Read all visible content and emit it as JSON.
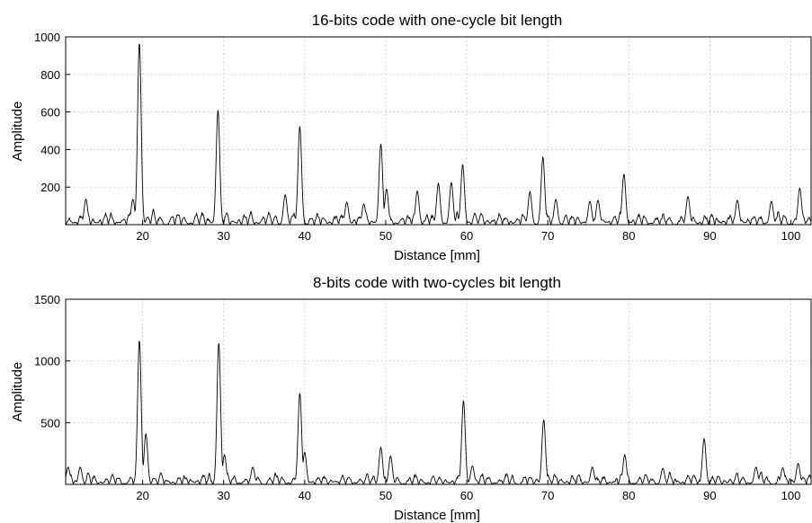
{
  "chart_data": [
    {
      "type": "line",
      "title": "16-bits code with one-cycle bit length",
      "xlabel": "Distance [mm]",
      "ylabel": "Amplitude",
      "xlim": [
        10.5,
        102.5
      ],
      "ylim": [
        0,
        1000
      ],
      "xticks": [
        20,
        30,
        40,
        50,
        60,
        70,
        80,
        90,
        100
      ],
      "yticks": [
        200,
        400,
        600,
        800,
        1000
      ],
      "grid": true,
      "line_color": "#000000",
      "peaks": [
        {
          "x": 19.6,
          "y": 970
        },
        {
          "x": 29.3,
          "y": 610
        },
        {
          "x": 39.4,
          "y": 525
        },
        {
          "x": 49.4,
          "y": 430
        },
        {
          "x": 50.1,
          "y": 190
        },
        {
          "x": 53.9,
          "y": 180
        },
        {
          "x": 56.5,
          "y": 220
        },
        {
          "x": 58.1,
          "y": 225
        },
        {
          "x": 59.5,
          "y": 320
        },
        {
          "x": 67.8,
          "y": 175
        },
        {
          "x": 69.4,
          "y": 360
        },
        {
          "x": 79.4,
          "y": 270
        },
        {
          "x": 87.3,
          "y": 150
        },
        {
          "x": 101.1,
          "y": 195
        },
        {
          "x": 13.0,
          "y": 135
        },
        {
          "x": 37.6,
          "y": 160
        },
        {
          "x": 18.8,
          "y": 135
        },
        {
          "x": 47.3,
          "y": 110
        },
        {
          "x": 45.2,
          "y": 120
        },
        {
          "x": 71.0,
          "y": 135
        },
        {
          "x": 76.2,
          "y": 130
        },
        {
          "x": 75.2,
          "y": 125
        },
        {
          "x": 93.4,
          "y": 130
        },
        {
          "x": 97.6,
          "y": 125
        }
      ],
      "noise_level": 70
    },
    {
      "type": "line",
      "title": "8-bits code with two-cycles bit length",
      "xlabel": "Distance [mm]",
      "ylabel": "Amplitude",
      "xlim": [
        10.5,
        102.5
      ],
      "ylim": [
        0,
        1500
      ],
      "xticks": [
        20,
        30,
        40,
        50,
        60,
        70,
        80,
        90,
        100
      ],
      "yticks": [
        500,
        1000,
        1500
      ],
      "grid": true,
      "line_color": "#000000",
      "peaks": [
        {
          "x": 19.6,
          "y": 1170
        },
        {
          "x": 20.4,
          "y": 410
        },
        {
          "x": 29.4,
          "y": 1150
        },
        {
          "x": 30.1,
          "y": 240
        },
        {
          "x": 39.4,
          "y": 740
        },
        {
          "x": 40.0,
          "y": 260
        },
        {
          "x": 49.4,
          "y": 300
        },
        {
          "x": 50.6,
          "y": 230
        },
        {
          "x": 59.6,
          "y": 680
        },
        {
          "x": 69.5,
          "y": 525
        },
        {
          "x": 79.5,
          "y": 240
        },
        {
          "x": 89.3,
          "y": 370
        },
        {
          "x": 100.9,
          "y": 170
        },
        {
          "x": 10.8,
          "y": 140
        },
        {
          "x": 12.3,
          "y": 140
        },
        {
          "x": 60.7,
          "y": 150
        },
        {
          "x": 75.5,
          "y": 140
        },
        {
          "x": 33.6,
          "y": 140
        },
        {
          "x": 95.7,
          "y": 140
        },
        {
          "x": 84.2,
          "y": 130
        },
        {
          "x": 99.0,
          "y": 135
        }
      ],
      "noise_level": 90
    }
  ]
}
